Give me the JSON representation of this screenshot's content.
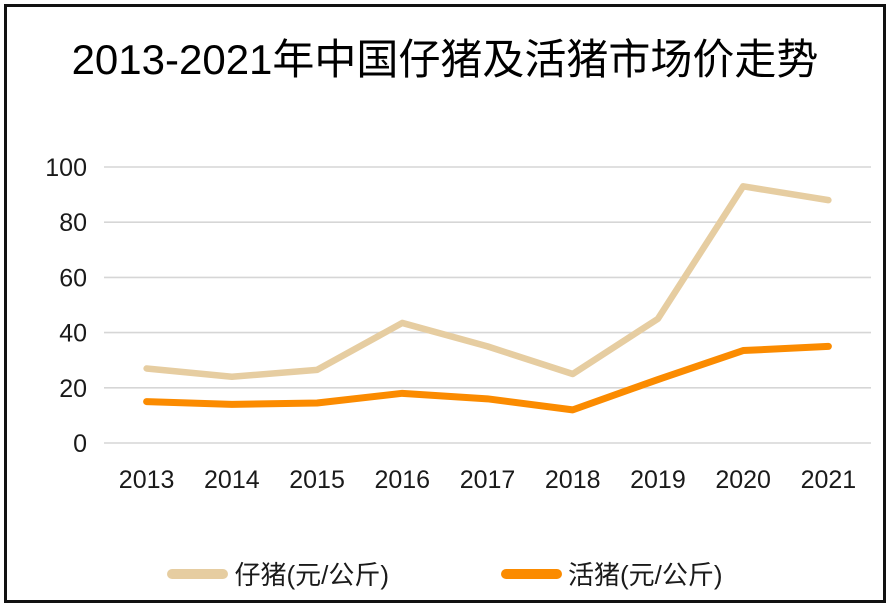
{
  "chart": {
    "title": "2013-2021年中国仔猪及活猪市场价走势"
  },
  "chart_data": {
    "type": "line",
    "title": "2013-2021年中国仔猪及活猪市场价走势",
    "categories": [
      "2013",
      "2014",
      "2015",
      "2016",
      "2017",
      "2018",
      "2019",
      "2020",
      "2021"
    ],
    "series": [
      {
        "id": "piglet",
        "name": "仔猪(元/公斤)",
        "color": "#E6CDA1",
        "stroke_width": 6.5,
        "values": [
          27,
          24,
          26.5,
          43.5,
          35,
          25,
          45,
          93,
          88
        ]
      },
      {
        "id": "live-pig",
        "name": "活猪(元/公斤)",
        "color": "#FB8B00",
        "stroke_width": 7,
        "values": [
          15,
          14,
          14.5,
          18,
          16,
          12,
          23,
          33.5,
          35
        ]
      }
    ],
    "xlabel": "",
    "ylabel": "",
    "ylim": [
      0,
      100
    ],
    "yticks": [
      0,
      20,
      40,
      60,
      80,
      100
    ],
    "grid": "horizontal",
    "gridline_color": "#D6D6D6",
    "tick_label_color": "#1A1A1A",
    "legend_position": "bottom"
  }
}
